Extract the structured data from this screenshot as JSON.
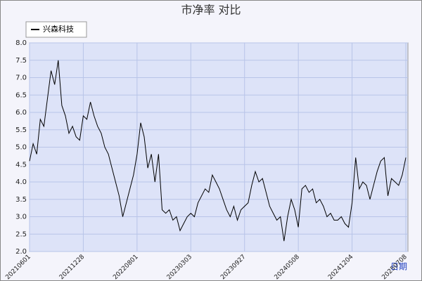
{
  "chart_data": {
    "type": "line",
    "title": "市净率 对比",
    "x_label": "日期",
    "categories": [
      "20210601",
      null,
      null,
      null,
      null,
      null,
      null,
      null,
      null,
      null,
      null,
      null,
      null,
      null,
      null,
      "20211228",
      null,
      null,
      null,
      null,
      null,
      null,
      null,
      null,
      null,
      null,
      null,
      null,
      null,
      null,
      "20220801",
      null,
      null,
      null,
      null,
      null,
      null,
      null,
      null,
      null,
      null,
      null,
      null,
      null,
      null,
      "20230303",
      null,
      null,
      null,
      null,
      null,
      null,
      null,
      null,
      null,
      null,
      null,
      null,
      null,
      null,
      "20230927",
      null,
      null,
      null,
      null,
      null,
      null,
      null,
      null,
      null,
      null,
      null,
      null,
      null,
      null,
      "20240508",
      null,
      null,
      null,
      null,
      null,
      null,
      null,
      null,
      null,
      null,
      null,
      null,
      null,
      null,
      "20241204",
      null,
      null,
      null,
      null,
      null,
      null,
      null,
      null,
      null,
      null,
      null,
      null,
      null,
      null,
      "20250708"
    ],
    "series": [
      {
        "name": "兴森科技",
        "color": "#000000",
        "values": [
          4.6,
          5.1,
          4.8,
          5.8,
          5.6,
          6.4,
          7.2,
          6.8,
          7.5,
          6.2,
          5.9,
          5.4,
          5.6,
          5.3,
          5.2,
          5.9,
          5.8,
          6.3,
          5.9,
          5.6,
          5.4,
          5.0,
          4.8,
          4.4,
          4.0,
          3.6,
          3.0,
          3.4,
          3.8,
          4.2,
          4.8,
          5.7,
          5.3,
          4.4,
          4.8,
          4.0,
          4.8,
          3.2,
          3.1,
          3.2,
          2.9,
          3.0,
          2.6,
          2.8,
          3.0,
          3.1,
          3.0,
          3.4,
          3.6,
          3.8,
          3.7,
          4.2,
          4.0,
          3.8,
          3.5,
          3.2,
          3.0,
          3.3,
          2.9,
          3.2,
          3.3,
          3.4,
          3.9,
          4.3,
          4.0,
          4.1,
          3.7,
          3.3,
          3.1,
          2.9,
          3.0,
          2.3,
          3.0,
          3.5,
          3.2,
          2.7,
          3.8,
          3.9,
          3.7,
          3.8,
          3.4,
          3.5,
          3.3,
          3.0,
          3.1,
          2.9,
          2.9,
          3.0,
          2.8,
          2.7,
          3.4,
          4.7,
          3.8,
          4.0,
          3.9,
          3.5,
          3.9,
          4.3,
          4.6,
          4.7,
          3.6,
          4.1,
          4.0,
          3.9,
          4.2,
          4.7
        ]
      }
    ],
    "ylim": [
      2.0,
      8.0
    ],
    "yticks": [
      {
        "value": 2,
        "label": "2.0"
      },
      2.5,
      {
        "value": 3,
        "label": "3.0"
      },
      3.5,
      {
        "value": 4,
        "label": "4.0"
      },
      4.5,
      {
        "value": 5,
        "label": "5.0"
      },
      5.5,
      {
        "value": 6,
        "label": "6.0"
      },
      6.5,
      {
        "value": 7,
        "label": "7.0"
      },
      7.5,
      {
        "value": 8,
        "label": "8.0"
      }
    ],
    "grid": true
  }
}
